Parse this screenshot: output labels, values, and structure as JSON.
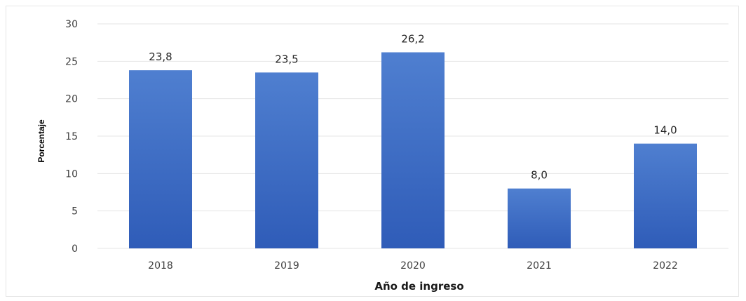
{
  "chart_data": {
    "type": "bar",
    "categories": [
      "2018",
      "2019",
      "2020",
      "2021",
      "2022"
    ],
    "values": [
      23.8,
      23.5,
      26.2,
      8.0,
      14.0
    ],
    "data_labels": [
      "23,8",
      "23,5",
      "26,2",
      "8,0",
      "14,0"
    ],
    "title": "",
    "xlabel": "Año de ingreso",
    "ylabel": "Porcentaje",
    "ylim": [
      0,
      30
    ],
    "yticks": [
      0,
      5,
      10,
      15,
      20,
      25,
      30
    ],
    "grid": true,
    "legend": "none",
    "colors": {
      "bar_top": "#4f7fd0",
      "bar_bottom": "#2f5cb8",
      "grid": "#e4e4e4"
    }
  }
}
